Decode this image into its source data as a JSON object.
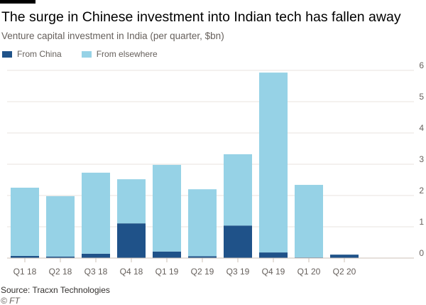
{
  "chart_data": {
    "type": "bar",
    "stacked": true,
    "title": "The surge in Chinese investment into Indian tech has fallen away",
    "subtitle": "Venture capital investment in India (per quarter, $bn)",
    "xlabel": "",
    "ylabel": "",
    "categories": [
      "Q1 18",
      "Q2 18",
      "Q3 18",
      "Q4 18",
      "Q1 19",
      "Q2 19",
      "Q3 19",
      "Q4 19",
      "Q1 20",
      "Q2 20"
    ],
    "series": [
      {
        "name": "From China",
        "color": "#1f5289",
        "values": [
          0.07,
          0.05,
          0.14,
          1.11,
          0.21,
          0.06,
          1.04,
          0.18,
          0.02,
          0.11
        ]
      },
      {
        "name": "From elsewhere",
        "color": "#96d2e6",
        "values": [
          2.18,
          1.93,
          2.59,
          1.41,
          2.77,
          2.14,
          2.28,
          5.75,
          2.32,
          0
        ]
      }
    ],
    "ylim": [
      0,
      6
    ],
    "yticks": [
      "0",
      "1",
      "2",
      "3",
      "4",
      "5",
      "6"
    ],
    "grid": true,
    "legend_position": "top-left",
    "source": "Source: Tracxn Technologies",
    "credit": "© FT"
  }
}
